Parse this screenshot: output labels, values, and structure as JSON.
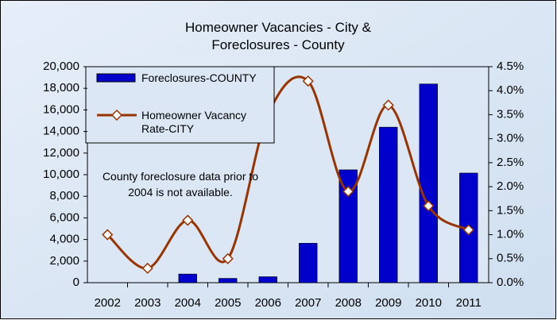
{
  "chart_data": {
    "type": "bar_line",
    "title": "Homeowner Vacancies - City & Foreclosures - County",
    "annotation": "County foreclosure data prior to 2004 is not available.",
    "categories": [
      "2002",
      "2003",
      "2004",
      "2005",
      "2006",
      "2007",
      "2008",
      "2009",
      "2010",
      "2011"
    ],
    "series": [
      {
        "name": "Foreclosures-COUNTY",
        "type": "bar",
        "color": "#0000cc",
        "values": [
          null,
          null,
          800,
          400,
          550,
          3650,
          10450,
          14400,
          18400,
          10150
        ]
      },
      {
        "name": "Homeowner Vacancy Rate-CITY",
        "type": "line",
        "axis": "y2",
        "color": "#993300",
        "values": [
          1.0,
          0.3,
          1.3,
          0.5,
          3.5,
          4.2,
          1.9,
          3.7,
          1.6,
          1.1
        ]
      }
    ],
    "ylim": [
      0,
      20000
    ],
    "yticks": [
      0,
      {
        "value": 2000,
        "label": "2,000"
      },
      {
        "value": 4000,
        "label": "4,000"
      },
      {
        "value": 6000,
        "label": "6,000"
      },
      {
        "value": 8000,
        "label": "8,000"
      },
      {
        "value": 10000,
        "label": "10,000"
      },
      {
        "value": 12000,
        "label": "12,000"
      },
      {
        "value": 14000,
        "label": "14,000"
      },
      {
        "value": 16000,
        "label": "16,000"
      },
      {
        "value": 18000,
        "label": "18,000"
      },
      {
        "value": 20000,
        "label": "20,000"
      }
    ],
    "y2lim": [
      0,
      4.5
    ],
    "y2ticks": [
      {
        "value": 0,
        "label": "0.0%"
      },
      {
        "value": 0.5,
        "label": "0.5%"
      },
      {
        "value": 1.0,
        "label": "1.0%"
      },
      {
        "value": 1.5,
        "label": "1.5%"
      },
      {
        "value": 2.0,
        "label": "2.0%"
      },
      {
        "value": 2.5,
        "label": "2.5%"
      },
      {
        "value": 3.0,
        "label": "3.0%"
      },
      {
        "value": 3.5,
        "label": "3.5%"
      },
      {
        "value": 4.0,
        "label": "4.0%"
      },
      {
        "value": 4.5,
        "label": "4.5%"
      }
    ],
    "legend": "top-left"
  }
}
